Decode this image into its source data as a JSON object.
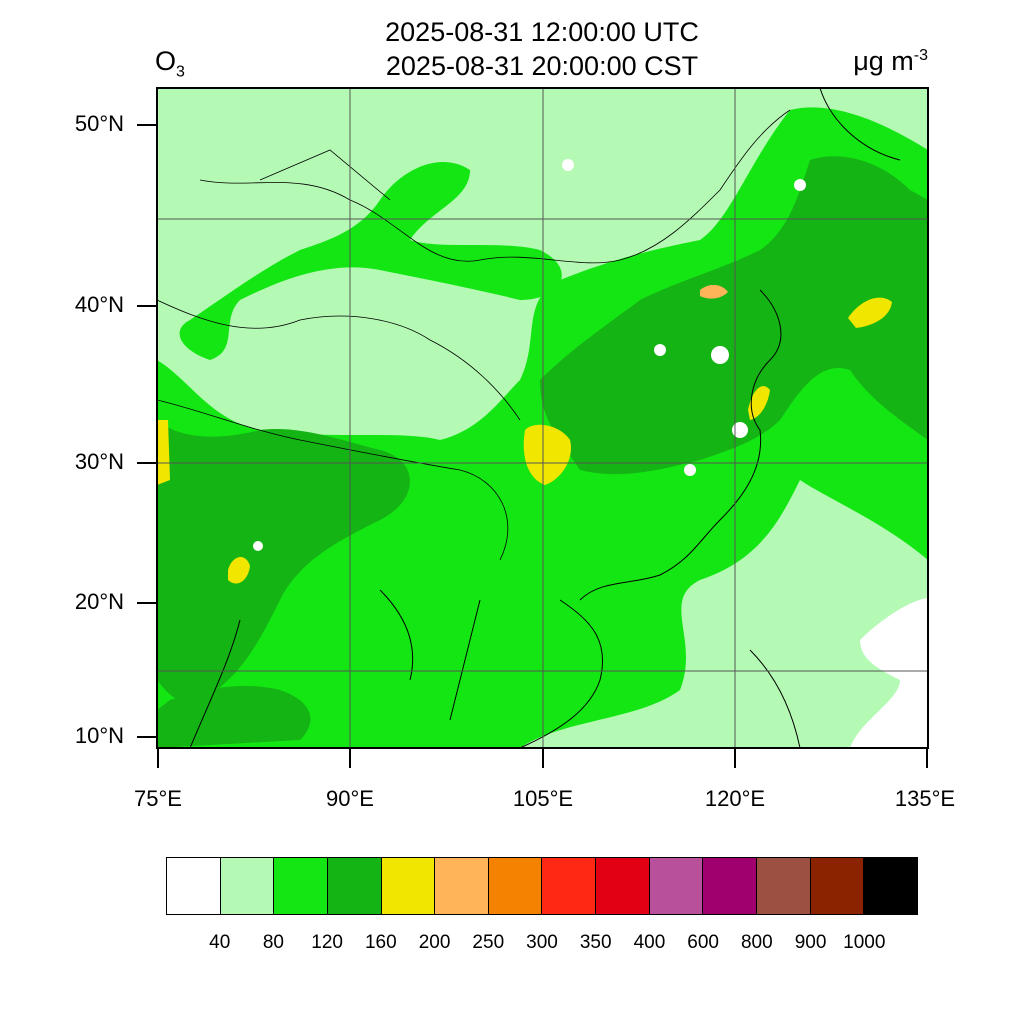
{
  "title": {
    "utc": "2025-08-31 12:00:00 UTC",
    "cst": "2025-08-31 20:00:00 CST"
  },
  "variable": {
    "base": "O",
    "subscript": "3"
  },
  "unit": {
    "base": "μg m",
    "superscript": "-3"
  },
  "axes": {
    "lat_labels": [
      "50°N",
      "40°N",
      "30°N",
      "20°N",
      "10°N"
    ],
    "lon_labels": [
      "75°E",
      "90°E",
      "105°E",
      "120°E",
      "135°E"
    ]
  },
  "colorbar": {
    "labels": [
      "40",
      "80",
      "120",
      "160",
      "200",
      "250",
      "300",
      "350",
      "400",
      "600",
      "800",
      "900",
      "1000"
    ],
    "colors": [
      "#ffffff",
      "#b4fab4",
      "#14e614",
      "#14b414",
      "#f0e600",
      "#ffb45a",
      "#f58200",
      "#ff2814",
      "#e10014",
      "#b9509b",
      "#a0006e",
      "#9b5041",
      "#8c2300",
      "#000000"
    ]
  },
  "map": {
    "background_color": "#b4fab4",
    "grid_color": "#555555"
  }
}
